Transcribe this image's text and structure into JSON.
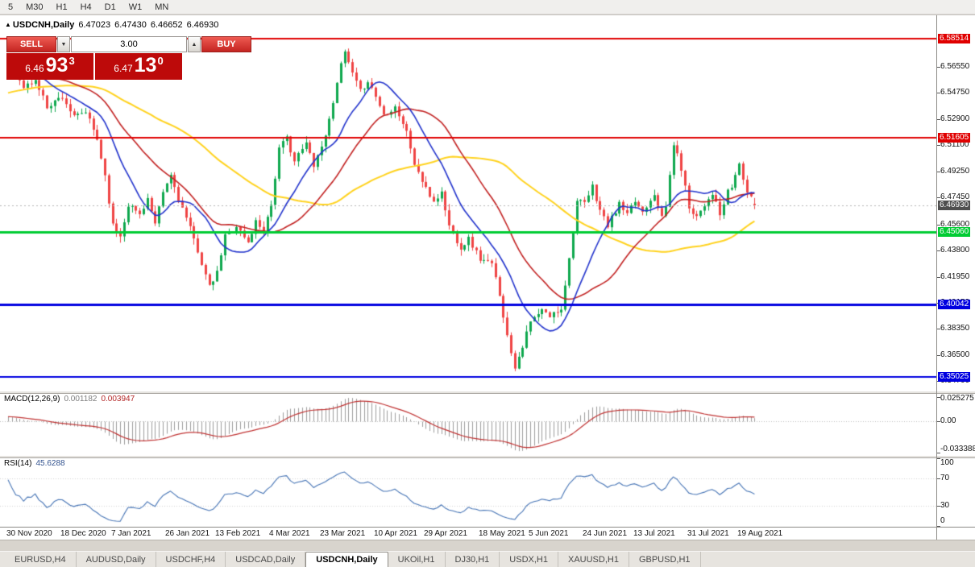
{
  "toolbar": {
    "timeframes": [
      "5",
      "M30",
      "H1",
      "H4",
      "D1",
      "W1",
      "MN"
    ]
  },
  "chart": {
    "title": "USDCNH,Daily"
  },
  "trade_widget": {
    "sell_label": "SELL",
    "buy_label": "BUY",
    "volume": "3.00",
    "sell_price": {
      "prefix": "6.46",
      "pips": "93",
      "pipette": "3"
    },
    "buy_price": {
      "prefix": "6.47",
      "pips": "13",
      "pipette": "0"
    }
  },
  "chart_data": {
    "type": "candlestick",
    "symbol": "USDCNH",
    "timeframe": "Daily",
    "last": {
      "open": "6.47023",
      "high": "6.47430",
      "low": "6.46652",
      "close": "6.46930"
    },
    "y_scale": {
      "price_top": 6.6,
      "price_bottom": 6.34
    },
    "price_axis_ticks": [
      "6.56550",
      "6.54750",
      "6.52900",
      "6.51100",
      "6.49250",
      "6.47450",
      "6.45600",
      "6.43800",
      "6.41950",
      "6.40150",
      "6.38350",
      "6.36500",
      "6.34700"
    ],
    "levels": [
      {
        "price": 6.58514,
        "label": "6.58514",
        "color": "#e00000",
        "width": 2
      },
      {
        "price": 6.51605,
        "label": "6.51605",
        "color": "#e00000",
        "width": 2
      },
      {
        "price": 6.4506,
        "label": "6.45060",
        "color": "#00cc33",
        "width": 3
      },
      {
        "price": 6.40042,
        "label": "6.40042",
        "color": "#0000e0",
        "width": 3
      },
      {
        "price": 6.35025,
        "label": "6.35025",
        "color": "#0000e0",
        "width": 2
      }
    ],
    "current_price": {
      "value": 6.4693,
      "label": "6.46930",
      "badge_color": "#4f4f4f"
    },
    "colors": {
      "up": "#0fa84e",
      "down": "#ef4444",
      "macd_hist": "#9c9c9c",
      "macd_signal": "#c03333",
      "rsi_line": "#4674b5"
    },
    "moving_averages": [
      {
        "period": 60,
        "color": "#ffd21e",
        "width": 2
      },
      {
        "period": 28,
        "color": "#c22222",
        "width": 1.6
      },
      {
        "period": 13,
        "color": "#2233cc",
        "width": 1.6
      }
    ],
    "pre_anchors": [
      [
        -60,
        6.52
      ],
      [
        -35,
        6.545
      ],
      [
        -15,
        6.56
      ],
      [
        -1,
        6.566
      ]
    ],
    "close_anchors": [
      [
        0,
        6.567
      ],
      [
        4,
        6.551
      ],
      [
        7,
        6.556
      ],
      [
        10,
        6.538
      ],
      [
        14,
        6.545
      ],
      [
        17,
        6.53
      ],
      [
        20,
        6.534
      ],
      [
        23,
        6.515
      ],
      [
        25,
        6.49
      ],
      [
        27,
        6.455
      ],
      [
        29,
        6.448
      ],
      [
        31,
        6.47
      ],
      [
        34,
        6.463
      ],
      [
        36,
        6.474
      ],
      [
        38,
        6.455
      ],
      [
        40,
        6.478
      ],
      [
        42,
        6.49
      ],
      [
        44,
        6.474
      ],
      [
        46,
        6.46
      ],
      [
        49,
        6.438
      ],
      [
        52,
        6.412
      ],
      [
        54,
        6.422
      ],
      [
        56,
        6.448
      ],
      [
        59,
        6.455
      ],
      [
        62,
        6.443
      ],
      [
        64,
        6.458
      ],
      [
        66,
        6.452
      ],
      [
        68,
        6.47
      ],
      [
        70,
        6.508
      ],
      [
        72,
        6.516
      ],
      [
        74,
        6.5
      ],
      [
        77,
        6.512
      ],
      [
        79,
        6.498
      ],
      [
        81,
        6.51
      ],
      [
        83,
        6.528
      ],
      [
        85,
        6.556
      ],
      [
        87,
        6.5755
      ],
      [
        89,
        6.56
      ],
      [
        91,
        6.548
      ],
      [
        93,
        6.556
      ],
      [
        95,
        6.545
      ],
      [
        97,
        6.532
      ],
      [
        100,
        6.538
      ],
      [
        103,
        6.52
      ],
      [
        105,
        6.498
      ],
      [
        108,
        6.48
      ],
      [
        110,
        6.472
      ],
      [
        112,
        6.478
      ],
      [
        114,
        6.455
      ],
      [
        117,
        6.44
      ],
      [
        119,
        6.446
      ],
      [
        122,
        6.432
      ],
      [
        125,
        6.428
      ],
      [
        127,
        6.408
      ],
      [
        129,
        6.378
      ],
      [
        131,
        6.3575
      ],
      [
        133,
        6.372
      ],
      [
        135,
        6.388
      ],
      [
        138,
        6.396
      ],
      [
        140,
        6.392
      ],
      [
        143,
        6.398
      ],
      [
        145,
        6.432
      ],
      [
        147,
        6.472
      ],
      [
        149,
        6.47
      ],
      [
        151,
        6.482
      ],
      [
        153,
        6.466
      ],
      [
        155,
        6.455
      ],
      [
        158,
        6.47
      ],
      [
        160,
        6.462
      ],
      [
        162,
        6.472
      ],
      [
        164,
        6.465
      ],
      [
        167,
        6.478
      ],
      [
        169,
        6.46
      ],
      [
        170,
        6.468
      ],
      [
        172,
        6.512
      ],
      [
        174,
        6.495
      ],
      [
        176,
        6.468
      ],
      [
        178,
        6.462
      ],
      [
        180,
        6.47
      ],
      [
        182,
        6.478
      ],
      [
        184,
        6.462
      ],
      [
        186,
        6.478
      ],
      [
        187,
        6.482
      ],
      [
        189,
        6.498
      ],
      [
        191,
        6.478
      ],
      [
        193,
        6.4693
      ]
    ],
    "date_labels": [
      {
        "text": "30 Nov 2020",
        "bar": 0
      },
      {
        "text": "18 Dec 2020",
        "bar": 14
      },
      {
        "text": "7 Jan 2021",
        "bar": 27
      },
      {
        "text": "26 Jan 2021",
        "bar": 41
      },
      {
        "text": "13 Feb 2021",
        "bar": 54
      },
      {
        "text": "4 Mar 2021",
        "bar": 68
      },
      {
        "text": "23 Mar 2021",
        "bar": 81
      },
      {
        "text": "10 Apr 2021",
        "bar": 95
      },
      {
        "text": "29 Apr 2021",
        "bar": 108
      },
      {
        "text": "18 May 2021",
        "bar": 122
      },
      {
        "text": "5 Jun 2021",
        "bar": 135
      },
      {
        "text": "24 Jun 2021",
        "bar": 149
      },
      {
        "text": "13 Jul 2021",
        "bar": 162
      },
      {
        "text": "31 Jul 2021",
        "bar": 176
      },
      {
        "text": "19 Aug 2021",
        "bar": 189
      }
    ],
    "macd": {
      "label": "MACD(12,26,9)",
      "value1": "0.001182",
      "value2": "0.003947",
      "scale_top": 0.0295,
      "scale_bottom": -0.0368,
      "axis": [
        {
          "text": "0.025275",
          "value": 0.025275
        },
        {
          "text": "0.00",
          "value": 0
        },
        {
          "text": "-0.033388",
          "value": -0.033388
        }
      ]
    },
    "rsi": {
      "label": "RSI(14)",
      "value": "45.6288",
      "period": 14,
      "axis": [
        {
          "text": "100",
          "value": 100
        },
        {
          "text": "70",
          "value": 70
        },
        {
          "text": "30",
          "value": 30
        },
        {
          "text": "0",
          "value": 0
        }
      ]
    }
  },
  "tabs": [
    {
      "label": "EURUSD,H4",
      "active": false
    },
    {
      "label": "AUDUSD,Daily",
      "active": false
    },
    {
      "label": "USDCHF,H4",
      "active": false
    },
    {
      "label": "USDCAD,Daily",
      "active": false
    },
    {
      "label": "USDCNH,Daily",
      "active": true
    },
    {
      "label": "UKOil,H1",
      "active": false
    },
    {
      "label": "DJ30,H1",
      "active": false
    },
    {
      "label": "USDX,H1",
      "active": false
    },
    {
      "label": "XAUUSD,H1",
      "active": false
    },
    {
      "label": "GBPUSD,H1",
      "active": false
    }
  ]
}
